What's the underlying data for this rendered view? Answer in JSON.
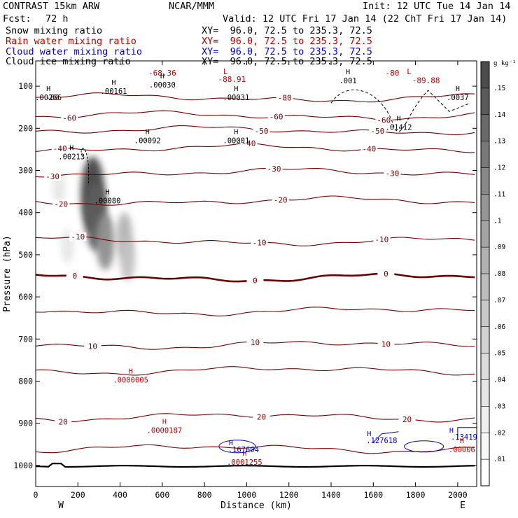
{
  "header": {
    "model": "CONTRAST 15km ARW",
    "center": "NCAR/MMM",
    "init": "Init: 12 UTC Tue 14 Jan 14",
    "fcst_label": "Fcst:",
    "fcst_value": "72 h",
    "valid": "Valid: 12 UTC Fri 17 Jan 14 (22 ChT Fri 17 Jan 14)"
  },
  "legend": [
    {
      "name": "Snow mixing ratio",
      "xy": "XY=  96.0, 72.5 to 235.3, 72.5",
      "color": "#000000"
    },
    {
      "name": "Rain water mixing ratio",
      "xy": "XY=  96.0, 72.5 to 235.3, 72.5",
      "color": "#c00000"
    },
    {
      "name": "Cloud water mixing ratio",
      "xy": "XY=  96.0, 72.5 to 235.3, 72.5",
      "color": "#0000c8"
    },
    {
      "name": "Cloud ice mixing ratio",
      "xy": "XY=  96.0, 72.5 to 235.3, 72.5",
      "color": "#000000"
    }
  ],
  "chart_data": {
    "type": "cross-section contour",
    "xlabel": "Distance (km)",
    "ylabel": "Pressure (hPa)",
    "xlim": [
      0,
      2090
    ],
    "ylim": [
      1050,
      40
    ],
    "x_ticks": [
      0,
      200,
      400,
      600,
      800,
      1000,
      1200,
      1400,
      1600,
      1800,
      2000
    ],
    "y_ticks": [
      100,
      200,
      300,
      400,
      500,
      600,
      700,
      800,
      900,
      1000
    ],
    "x_end_labels": {
      "left": "W",
      "right": "E"
    },
    "colorbar": {
      "unit": "g kg⁻¹",
      "ticks": [
        ".01",
        ".02",
        ".03",
        ".04",
        ".05",
        ".06",
        ".07",
        ".08",
        ".09",
        ".1",
        ".11",
        ".12",
        ".13",
        ".14",
        ".15"
      ],
      "levels": [
        0.005,
        0.01,
        0.02,
        0.03,
        0.04,
        0.05,
        0.06,
        0.07,
        0.08,
        0.09,
        0.1,
        0.11,
        0.12,
        0.13,
        0.14,
        0.15,
        0.16
      ],
      "grays": [
        "#ffffff",
        "#f7f7f7",
        "#efefef",
        "#e6e6e6",
        "#dcdcdc",
        "#d2d2d2",
        "#c8c8c8",
        "#bdbdbd",
        "#b1b1b1",
        "#a4a4a4",
        "#969696",
        "#888888",
        "#797979",
        "#6a6a6a",
        "#5b5b5b",
        "#4c4c4c"
      ]
    },
    "snow_blobs": [
      {
        "x": 270,
        "p": 355,
        "max": 0.15
      },
      {
        "x": 285,
        "p": 410,
        "max": 0.13
      },
      {
        "x": 330,
        "p": 470,
        "max": 0.09
      },
      {
        "x": 420,
        "p": 455,
        "max": 0.06
      },
      {
        "x": 435,
        "p": 510,
        "max": 0.05
      },
      {
        "x": 150,
        "p": 480,
        "max": 0.02
      },
      {
        "x": 110,
        "p": 340,
        "max": 0.02
      }
    ],
    "temperature_isotherms": {
      "color": "#7a0000",
      "bold_color": "#6a0000",
      "lines": [
        {
          "value": -20,
          "base": 373,
          "label": "-20",
          "label_x": [
            120,
            1160
          ]
        },
        {
          "value": -30,
          "base": 305,
          "label": "-30",
          "label_x": [
            80,
            1130,
            1690
          ]
        },
        {
          "value": -40,
          "base": 248,
          "label": "-40",
          "label_x": [
            115,
            1010,
            1580
          ]
        },
        {
          "value": -50,
          "base": 205,
          "label": "-50",
          "label_x": [
            1070,
            1620
          ]
        },
        {
          "value": -60,
          "base": 170,
          "label": "-60",
          "label_x": [
            160,
            1140,
            1650
          ]
        },
        {
          "value": -80,
          "base": 128,
          "label": "-80",
          "label_x": [
            80,
            1180
          ]
        },
        {
          "value": -10,
          "base": 468,
          "label": "-10",
          "label_x": [
            200,
            1060,
            1640
          ]
        },
        {
          "value": 0,
          "base": 554,
          "label": "0",
          "label_x": [
            185,
            1040,
            1660
          ],
          "bold": true
        },
        {
          "value": 5,
          "base": 634,
          "label": "",
          "label_x": []
        },
        {
          "value": 10,
          "base": 714,
          "label": "10",
          "label_x": [
            270,
            1040,
            1660
          ]
        },
        {
          "value": 15,
          "base": 775,
          "label": "",
          "label_x": []
        },
        {
          "value": 20,
          "base": 885,
          "label": "20",
          "label_x": [
            130,
            1070,
            1760
          ]
        },
        {
          "value": 25,
          "base": 960,
          "label": "",
          "label_x": []
        }
      ],
      "top_labels": [
        {
          "text": "-68.36",
          "x": 600,
          "p": 68
        },
        {
          "text": "-88.91",
          "x": 930,
          "p": 83
        },
        {
          "text": "-80",
          "x": 1690,
          "p": 68
        },
        {
          "text": "-89.88",
          "x": 1850,
          "p": 86
        },
        {
          "text": "L",
          "x": 900,
          "p": 65
        },
        {
          "text": "L",
          "x": 1770,
          "p": 65
        }
      ]
    },
    "cloud_ice_highs": [
      {
        "value": ".00266",
        "x": 60,
        "p": 130
      },
      {
        "value": ".00161",
        "x": 370,
        "p": 115
      },
      {
        "value": ".00030",
        "x": 600,
        "p": 100
      },
      {
        "value": ".00031",
        "x": 950,
        "p": 130
      },
      {
        "value": ".0037",
        "x": 2000,
        "p": 130
      },
      {
        "value": ".00213",
        "x": 170,
        "p": 270
      },
      {
        "value": ".00092",
        "x": 530,
        "p": 232
      },
      {
        "value": ".00001",
        "x": 950,
        "p": 232
      },
      {
        "value": ".01412",
        "x": 1720,
        "p": 200
      },
      {
        "value": ".00080",
        "x": 340,
        "p": 375
      },
      {
        "value": ".001",
        "x": 1480,
        "p": 90
      }
    ],
    "rain_highs": [
      {
        "value": ".0000005",
        "x": 450,
        "p": 800
      },
      {
        "value": ".0000187",
        "x": 610,
        "p": 920
      },
      {
        "value": ".0001255",
        "x": 990,
        "p": 995
      },
      {
        "value": ".00006",
        "x": 2020,
        "p": 965
      }
    ],
    "cloud_water_highs": [
      {
        "value": ".167604",
        "x": 985,
        "p": 955
      },
      {
        "value": ".127618",
        "x": 1640,
        "p": 934
      },
      {
        "value": ".13419",
        "x": 2030,
        "p": 925
      }
    ],
    "surface": {
      "color": "#000000",
      "p": 1002
    }
  }
}
